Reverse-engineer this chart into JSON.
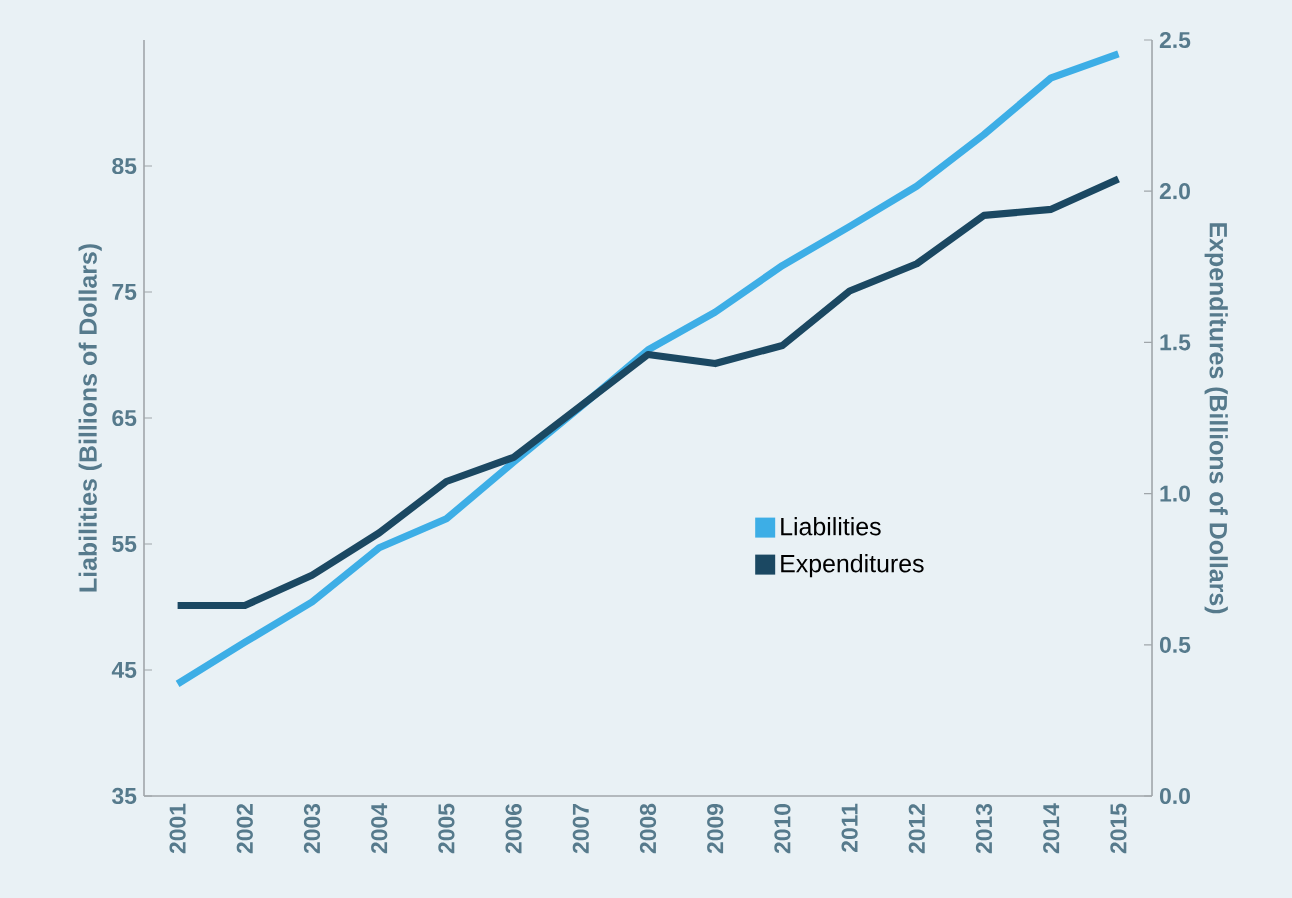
{
  "chart_data": {
    "type": "line",
    "categories": [
      "2001",
      "2002",
      "2003",
      "2004",
      "2005",
      "2006",
      "2007",
      "2008",
      "2009",
      "2010",
      "2011",
      "2012",
      "2013",
      "2014",
      "2015"
    ],
    "series": [
      {
        "name": "Liabilities",
        "color": "#3daee6",
        "values": [
          43.9,
          47.2,
          50.4,
          54.7,
          57.0,
          61.5,
          65.9,
          70.4,
          73.4,
          77.1,
          80.2,
          83.4,
          87.5,
          92.0,
          93.9
        ]
      },
      {
        "name": "Expenditures",
        "color": "#1b4862",
        "axis": "y2",
        "values": [
          0.63,
          0.63,
          0.73,
          0.87,
          1.04,
          1.12,
          1.29,
          1.46,
          1.43,
          1.49,
          1.67,
          1.76,
          1.92,
          1.94,
          2.04
        ]
      }
    ],
    "ylabel": "Liabilities (Billions of Dollars)",
    "y2label": "Expenditures (Billions of Dollars)",
    "ylim": [
      35,
      95
    ],
    "yticks": [
      35,
      45,
      55,
      65,
      75,
      85
    ],
    "y2lim": [
      0,
      2.5
    ],
    "y2ticks": [
      {
        "value": 0,
        "label": "0.0"
      },
      0.5,
      {
        "value": 1,
        "label": "1.0"
      },
      1.5,
      {
        "value": 2,
        "label": "2.0"
      },
      2.5
    ],
    "legend": "right"
  }
}
